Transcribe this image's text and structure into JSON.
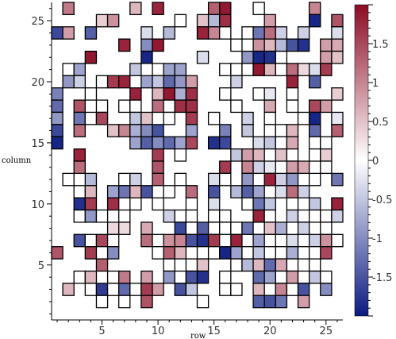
{
  "chart_data": {
    "type": "heatmap",
    "title": "",
    "xlabel": "row",
    "ylabel": "column",
    "xlim": [
      0.5,
      26.5
    ],
    "ylim": [
      0.5,
      26.5
    ],
    "x_ticks": [
      5,
      10,
      15,
      20,
      25
    ],
    "y_ticks": [
      5,
      10,
      15,
      20,
      25
    ],
    "color_scale": {
      "min": -2,
      "max": 2,
      "low_color": "#0b1a80",
      "mid_color": "#ffffff",
      "high_color": "#8c0b25",
      "ticks": [
        {
          "value": 1.5,
          "label": "1.5"
        },
        {
          "value": 1,
          "label": "1"
        },
        {
          "value": 0.5,
          "label": "0.5"
        },
        {
          "value": 0,
          "label": "0"
        },
        {
          "value": -0.5,
          "label": "-0.5"
        },
        {
          "value": -1,
          "label": "-1"
        },
        {
          "value": -1.5,
          "label": "-1.5"
        }
      ]
    },
    "note": "",
    "cells": [
      [
        2,
        26,
        1.1
      ],
      [
        8,
        26,
        0.6
      ],
      [
        10,
        26,
        1.8
      ],
      [
        15,
        26,
        1.3
      ],
      [
        16,
        26,
        1.9
      ],
      [
        19,
        26,
        0.0
      ],
      [
        24,
        26,
        1.0
      ],
      [
        5,
        25,
        0.4
      ],
      [
        6,
        25,
        0.9
      ],
      [
        12,
        25,
        0.0
      ],
      [
        14,
        25,
        0.5
      ],
      [
        15,
        25,
        -0.6
      ],
      [
        16,
        25,
        1.7
      ],
      [
        20,
        25,
        0.8
      ],
      [
        24,
        25,
        -1.9
      ],
      [
        26,
        25,
        1.4
      ],
      [
        1,
        24,
        -1.6
      ],
      [
        2,
        24,
        0.8
      ],
      [
        4,
        24,
        -1.4
      ],
      [
        9,
        24,
        -0.3
      ],
      [
        11,
        24,
        -0.6
      ],
      [
        14,
        24,
        1.8
      ],
      [
        15,
        24,
        1.0
      ],
      [
        16,
        24,
        0.0
      ],
      [
        18,
        24,
        0.0
      ],
      [
        19,
        24,
        -1.2
      ],
      [
        20,
        24,
        1.2
      ],
      [
        21,
        24,
        -0.4
      ],
      [
        23,
        24,
        -0.4
      ],
      [
        26,
        24,
        -0.3
      ],
      [
        7,
        23,
        1.8
      ],
      [
        9,
        23,
        -1.0
      ],
      [
        10,
        23,
        1.9
      ],
      [
        17,
        23,
        0.0
      ],
      [
        19,
        23,
        0.9
      ],
      [
        20,
        23,
        0.6
      ],
      [
        21,
        23,
        -0.6
      ],
      [
        22,
        23,
        -1.5
      ],
      [
        23,
        23,
        -1.8
      ],
      [
        25,
        23,
        0.8
      ],
      [
        26,
        23,
        0.7
      ],
      [
        4,
        22,
        1.9
      ],
      [
        9,
        22,
        -1.9
      ],
      [
        14,
        22,
        -0.3
      ],
      [
        18,
        22,
        -0.9
      ],
      [
        19,
        22,
        -1.9
      ],
      [
        20,
        22,
        -1.8
      ],
      [
        21,
        22,
        0.0
      ],
      [
        25,
        22,
        0.8
      ],
      [
        26,
        22,
        0.5
      ],
      [
        2,
        21,
        0.0
      ],
      [
        3,
        21,
        -0.8
      ],
      [
        8,
        21,
        -0.5
      ],
      [
        10,
        21,
        0.0
      ],
      [
        11,
        21,
        -0.8
      ],
      [
        12,
        21,
        -0.8
      ],
      [
        16,
        21,
        0.0
      ],
      [
        17,
        21,
        0.0
      ],
      [
        18,
        21,
        0.0
      ],
      [
        19,
        21,
        1.9
      ],
      [
        20,
        21,
        0.6
      ],
      [
        21,
        21,
        0.0
      ],
      [
        22,
        21,
        1.2
      ],
      [
        23,
        21,
        0.3
      ],
      [
        24,
        21,
        -0.3
      ],
      [
        25,
        21,
        1.6
      ],
      [
        2,
        20,
        -0.9
      ],
      [
        3,
        20,
        -0.4
      ],
      [
        5,
        20,
        0.0
      ],
      [
        6,
        20,
        1.6
      ],
      [
        7,
        20,
        1.8
      ],
      [
        9,
        20,
        -0.8
      ],
      [
        10,
        20,
        -0.5
      ],
      [
        11,
        20,
        -1.3
      ],
      [
        12,
        20,
        -0.9
      ],
      [
        13,
        20,
        0.8
      ],
      [
        17,
        20,
        -0.4
      ],
      [
        22,
        20,
        1.8
      ],
      [
        24,
        20,
        -1.4
      ],
      [
        1,
        19,
        -1.1
      ],
      [
        4,
        19,
        0.0
      ],
      [
        8,
        19,
        1.8
      ],
      [
        10,
        19,
        0.6
      ],
      [
        11,
        19,
        1.9
      ],
      [
        12,
        19,
        -0.7
      ],
      [
        13,
        19,
        1.7
      ],
      [
        16,
        19,
        0.0
      ],
      [
        19,
        19,
        0.0
      ],
      [
        20,
        19,
        -0.2
      ],
      [
        22,
        19,
        0.0
      ],
      [
        26,
        19,
        0.4
      ],
      [
        1,
        18,
        -1.3
      ],
      [
        3,
        18,
        1.4
      ],
      [
        5,
        18,
        0.0
      ],
      [
        7,
        18,
        0.0
      ],
      [
        8,
        18,
        0.0
      ],
      [
        10,
        18,
        1.2
      ],
      [
        11,
        18,
        0.0
      ],
      [
        12,
        18,
        1.7
      ],
      [
        13,
        18,
        1.7
      ],
      [
        17,
        18,
        0.0
      ],
      [
        20,
        18,
        0.7
      ],
      [
        22,
        18,
        0.0
      ],
      [
        24,
        18,
        1.5
      ],
      [
        25,
        18,
        0.8
      ],
      [
        1,
        17,
        -0.9
      ],
      [
        3,
        17,
        -1.2
      ],
      [
        4,
        17,
        0.0
      ],
      [
        5,
        17,
        1.5
      ],
      [
        8,
        17,
        -0.5
      ],
      [
        9,
        17,
        0.5
      ],
      [
        11,
        17,
        0.0
      ],
      [
        13,
        17,
        1.6
      ],
      [
        15,
        17,
        0.0
      ],
      [
        18,
        17,
        -0.4
      ],
      [
        20,
        17,
        0.0
      ],
      [
        23,
        17,
        0.0
      ],
      [
        24,
        17,
        -1.9
      ],
      [
        26,
        17,
        -0.2
      ],
      [
        1,
        16,
        -1.6
      ],
      [
        3,
        16,
        1.2
      ],
      [
        6,
        16,
        0.5
      ],
      [
        7,
        16,
        1.0
      ],
      [
        8,
        16,
        -0.7
      ],
      [
        9,
        16,
        -1.0
      ],
      [
        10,
        16,
        -1.5
      ],
      [
        13,
        16,
        -0.8
      ],
      [
        16,
        16,
        -1.1
      ],
      [
        18,
        16,
        -0.5
      ],
      [
        20,
        16,
        0.0
      ],
      [
        21,
        16,
        0.0
      ],
      [
        22,
        16,
        0.6
      ],
      [
        24,
        16,
        -1.3
      ],
      [
        26,
        16,
        1.3
      ],
      [
        1,
        15,
        -1.9
      ],
      [
        8,
        15,
        -0.8
      ],
      [
        9,
        15,
        -1.4
      ],
      [
        10,
        15,
        -1.0
      ],
      [
        11,
        15,
        -1.3
      ],
      [
        12,
        15,
        -0.8
      ],
      [
        13,
        15,
        1.5
      ],
      [
        15,
        15,
        -1.8
      ],
      [
        16,
        15,
        -1.6
      ],
      [
        19,
        15,
        -0.3
      ],
      [
        20,
        15,
        -0.5
      ],
      [
        21,
        15,
        0.0
      ],
      [
        22,
        15,
        0.7
      ],
      [
        24,
        15,
        0.0
      ],
      [
        25,
        15,
        0.0
      ],
      [
        3,
        14,
        1.8
      ],
      [
        10,
        14,
        1.6
      ],
      [
        12,
        14,
        0.0
      ],
      [
        17,
        14,
        -0.5
      ],
      [
        18,
        14,
        0.8
      ],
      [
        19,
        14,
        0.6
      ],
      [
        21,
        14,
        0.5
      ],
      [
        22,
        14,
        0.0
      ],
      [
        24,
        14,
        0.0
      ],
      [
        25,
        14,
        0.4
      ],
      [
        3,
        13,
        1.2
      ],
      [
        10,
        13,
        1.4
      ],
      [
        16,
        13,
        1.6
      ],
      [
        18,
        13,
        1.0
      ],
      [
        19,
        13,
        -0.4
      ],
      [
        20,
        13,
        -0.2
      ],
      [
        22,
        13,
        0.8
      ],
      [
        23,
        13,
        0.7
      ],
      [
        25,
        13,
        0.0
      ],
      [
        2,
        12,
        0.0
      ],
      [
        4,
        12,
        -0.6
      ],
      [
        7,
        12,
        0.0
      ],
      [
        8,
        12,
        -0.4
      ],
      [
        10,
        12,
        1.3
      ],
      [
        12,
        12,
        0.0
      ],
      [
        15,
        12,
        -0.3
      ],
      [
        16,
        12,
        0.0
      ],
      [
        18,
        12,
        -0.9
      ],
      [
        20,
        12,
        1.8
      ],
      [
        21,
        12,
        -0.4
      ],
      [
        22,
        12,
        -0.9
      ],
      [
        24,
        12,
        0.0
      ],
      [
        26,
        12,
        -1.2
      ],
      [
        3,
        11,
        0.0
      ],
      [
        4,
        11,
        0.6
      ],
      [
        6,
        11,
        -0.8
      ],
      [
        7,
        11,
        -1.2
      ],
      [
        8,
        11,
        0.6
      ],
      [
        9,
        11,
        -1.5
      ],
      [
        11,
        11,
        0.0
      ],
      [
        13,
        11,
        1.2
      ],
      [
        15,
        11,
        -1.5
      ],
      [
        17,
        11,
        -0.6
      ],
      [
        18,
        11,
        -1.4
      ],
      [
        19,
        11,
        -0.8
      ],
      [
        21,
        11,
        -0.3
      ],
      [
        22,
        11,
        1.2
      ],
      [
        23,
        11,
        -0.4
      ],
      [
        3,
        10,
        -1.8
      ],
      [
        4,
        10,
        1.6
      ],
      [
        6,
        10,
        1.7
      ],
      [
        8,
        10,
        0.0
      ],
      [
        10,
        10,
        0.0
      ],
      [
        13,
        10,
        0.0
      ],
      [
        15,
        10,
        -0.3
      ],
      [
        18,
        10,
        0.0
      ],
      [
        19,
        10,
        -1.2
      ],
      [
        20,
        10,
        -0.5
      ],
      [
        22,
        10,
        0.0
      ],
      [
        24,
        10,
        -0.5
      ],
      [
        26,
        10,
        1.8
      ],
      [
        3,
        9,
        0.0
      ],
      [
        4,
        9,
        -0.9
      ],
      [
        5,
        9,
        0.0
      ],
      [
        7,
        9,
        0.0
      ],
      [
        11,
        9,
        -0.4
      ],
      [
        12,
        9,
        0.0
      ],
      [
        13,
        9,
        0.0
      ],
      [
        15,
        9,
        0.0
      ],
      [
        16,
        9,
        0.0
      ],
      [
        19,
        9,
        1.8
      ],
      [
        20,
        9,
        0.0
      ],
      [
        22,
        9,
        -0.4
      ],
      [
        23,
        9,
        0.0
      ],
      [
        24,
        9,
        0.0
      ],
      [
        25,
        9,
        0.0
      ],
      [
        26,
        9,
        -0.4
      ],
      [
        6,
        8,
        0.3
      ],
      [
        7,
        8,
        0.3
      ],
      [
        9,
        8,
        0.7
      ],
      [
        12,
        8,
        -1.6
      ],
      [
        13,
        8,
        0.0
      ],
      [
        14,
        8,
        -1.4
      ],
      [
        15,
        8,
        0.0
      ],
      [
        16,
        8,
        0.0
      ],
      [
        17,
        8,
        0.0
      ],
      [
        18,
        8,
        -1.2
      ],
      [
        19,
        8,
        0.0
      ],
      [
        20,
        8,
        0.5
      ],
      [
        21,
        8,
        -0.7
      ],
      [
        23,
        8,
        -0.4
      ],
      [
        25,
        8,
        0.0
      ],
      [
        3,
        7,
        -1.5
      ],
      [
        4,
        7,
        0.0
      ],
      [
        5,
        7,
        1.5
      ],
      [
        6,
        7,
        0.0
      ],
      [
        9,
        7,
        1.2
      ],
      [
        10,
        7,
        0.0
      ],
      [
        11,
        7,
        0.9
      ],
      [
        12,
        7,
        1.0
      ],
      [
        13,
        7,
        -1.5
      ],
      [
        14,
        7,
        -1.8
      ],
      [
        15,
        7,
        1.6
      ],
      [
        17,
        7,
        1.8
      ],
      [
        19,
        7,
        -0.8
      ],
      [
        20,
        7,
        0.0
      ],
      [
        22,
        7,
        -0.3
      ],
      [
        24,
        7,
        -0.4
      ],
      [
        25,
        7,
        0.9
      ],
      [
        26,
        7,
        0.0
      ],
      [
        1,
        6,
        1.4
      ],
      [
        4,
        6,
        1.6
      ],
      [
        6,
        6,
        -1.0
      ],
      [
        10,
        6,
        0.0
      ],
      [
        11,
        6,
        1.3
      ],
      [
        12,
        6,
        0.6
      ],
      [
        14,
        6,
        0.0
      ],
      [
        15,
        6,
        0.0
      ],
      [
        16,
        6,
        -1.9
      ],
      [
        17,
        6,
        -0.8
      ],
      [
        18,
        6,
        0.0
      ],
      [
        19,
        6,
        -0.5
      ],
      [
        21,
        6,
        0.0
      ],
      [
        22,
        6,
        -0.7
      ],
      [
        23,
        6,
        0.0
      ],
      [
        25,
        6,
        1.5
      ],
      [
        5,
        5,
        1.3
      ],
      [
        11,
        5,
        0.0
      ],
      [
        13,
        5,
        0.0
      ],
      [
        14,
        5,
        0.5
      ],
      [
        17,
        5,
        0.0
      ],
      [
        18,
        5,
        -0.6
      ],
      [
        19,
        5,
        0.6
      ],
      [
        20,
        5,
        -1.3
      ],
      [
        21,
        5,
        0.7
      ],
      [
        22,
        5,
        0.0
      ],
      [
        24,
        5,
        0.0
      ],
      [
        3,
        4,
        0.0
      ],
      [
        4,
        4,
        0.6
      ],
      [
        6,
        4,
        0.0
      ],
      [
        7,
        4,
        1.1
      ],
      [
        9,
        4,
        0.8
      ],
      [
        11,
        4,
        -0.9
      ],
      [
        12,
        4,
        0.0
      ],
      [
        13,
        4,
        -1.5
      ],
      [
        14,
        4,
        -1.8
      ],
      [
        16,
        4,
        0.0
      ],
      [
        19,
        4,
        -1.3
      ],
      [
        20,
        4,
        -0.8
      ],
      [
        21,
        4,
        0.0
      ],
      [
        22,
        4,
        0.8
      ],
      [
        23,
        4,
        0.0
      ],
      [
        24,
        4,
        -0.5
      ],
      [
        25,
        4,
        0.0
      ],
      [
        2,
        3,
        0.6
      ],
      [
        4,
        3,
        0.0
      ],
      [
        5,
        3,
        -1.7
      ],
      [
        6,
        3,
        0.0
      ],
      [
        7,
        3,
        -1.3
      ],
      [
        8,
        3,
        0.0
      ],
      [
        9,
        3,
        1.6
      ],
      [
        10,
        3,
        0.8
      ],
      [
        12,
        3,
        -1.5
      ],
      [
        13,
        3,
        -0.5
      ],
      [
        16,
        3,
        0.0
      ],
      [
        17,
        3,
        0.0
      ],
      [
        19,
        3,
        0.6
      ],
      [
        20,
        3,
        0.0
      ],
      [
        21,
        3,
        1.0
      ],
      [
        22,
        3,
        0.0
      ],
      [
        23,
        3,
        -1.5
      ],
      [
        25,
        3,
        -1.0
      ],
      [
        5,
        2,
        0.0
      ],
      [
        7,
        2,
        0.0
      ],
      [
        9,
        2,
        1.4
      ],
      [
        14,
        2,
        0.0
      ],
      [
        19,
        2,
        -1.4
      ],
      [
        20,
        2,
        -1.5
      ],
      [
        21,
        2,
        -1.2
      ],
      [
        23,
        2,
        0.8
      ]
    ]
  }
}
